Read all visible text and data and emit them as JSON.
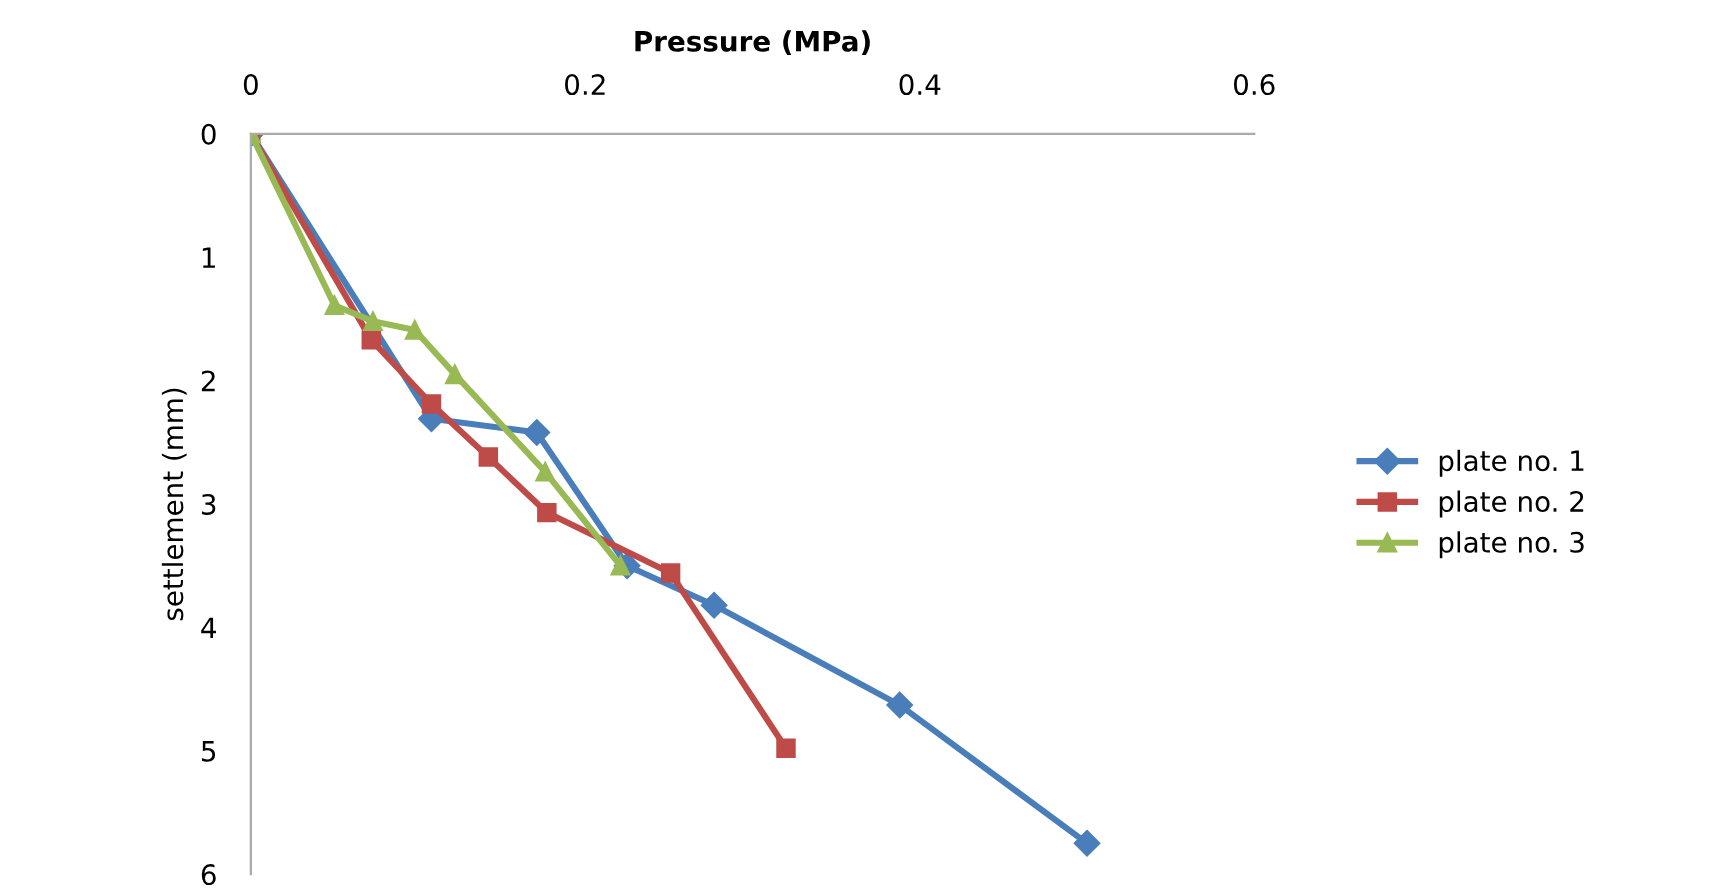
{
  "chart_data": {
    "type": "line",
    "xlabel": "Pressure (MPa)",
    "ylabel": "settlement (mm)",
    "xlim": [
      0,
      0.6
    ],
    "xticks": [
      0,
      0.2,
      0.4,
      0.6
    ],
    "ylim": [
      6,
      0
    ],
    "yticks": [
      0,
      1,
      2,
      3,
      4,
      5,
      6
    ],
    "grid": false,
    "legend": "right",
    "series": [
      {
        "name": "plate no. 1",
        "color": "#4a7ebb",
        "marker": "diamond",
        "x": [
          0,
          0.108,
          0.171,
          0.225,
          0.277,
          0.388,
          0.5
        ],
        "values": [
          0,
          2.31,
          2.42,
          3.5,
          3.82,
          4.63,
          5.75
        ]
      },
      {
        "name": "plate no. 2",
        "color": "#be4b48",
        "marker": "square",
        "x": [
          0,
          0.072,
          0.108,
          0.142,
          0.177,
          0.251,
          0.32
        ],
        "values": [
          0,
          1.67,
          2.19,
          2.62,
          3.07,
          3.56,
          4.98
        ]
      },
      {
        "name": "plate no. 3",
        "color": "#98b954",
        "marker": "triangle",
        "x": [
          0,
          0.05,
          0.073,
          0.098,
          0.122,
          0.176,
          0.221
        ],
        "values": [
          0,
          1.39,
          1.52,
          1.59,
          1.95,
          2.74,
          3.5
        ]
      }
    ]
  }
}
